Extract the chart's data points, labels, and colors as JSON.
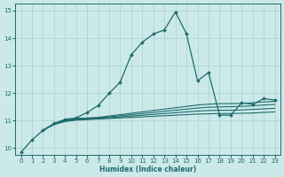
{
  "xlabel": "Humidex (Indice chaleur)",
  "bg_color": "#cce9ea",
  "grid_color": "#aed4d5",
  "line_color": "#1e6b6b",
  "xlim": [
    -0.5,
    23.5
  ],
  "ylim": [
    9.75,
    15.25
  ],
  "yticks": [
    10,
    11,
    12,
    13,
    14,
    15
  ],
  "xticks": [
    0,
    1,
    2,
    3,
    4,
    5,
    6,
    7,
    8,
    9,
    10,
    11,
    12,
    13,
    14,
    15,
    16,
    17,
    18,
    19,
    20,
    21,
    22,
    23
  ],
  "lines": [
    {
      "x": [
        0,
        1,
        2,
        3,
        4,
        5,
        6,
        7,
        8,
        9,
        10,
        11,
        12,
        13,
        14,
        15,
        16,
        17,
        18,
        19,
        20,
        21,
        22,
        23
      ],
      "y": [
        9.85,
        10.3,
        10.65,
        10.9,
        11.05,
        11.1,
        11.3,
        11.55,
        12.0,
        12.4,
        13.4,
        13.85,
        14.15,
        14.3,
        14.95,
        14.15,
        12.45,
        12.75,
        11.2,
        11.2,
        11.65,
        11.6,
        11.8,
        11.75
      ],
      "marker": "D",
      "markersize": 2.0,
      "linewidth": 0.9
    },
    {
      "x": [
        2,
        3,
        4,
        5,
        6,
        7,
        8,
        9,
        10,
        11,
        12,
        13,
        14,
        15,
        16,
        17,
        18,
        19,
        20,
        21,
        22,
        23
      ],
      "y": [
        10.65,
        10.88,
        11.02,
        11.08,
        11.1,
        11.12,
        11.17,
        11.22,
        11.27,
        11.32,
        11.37,
        11.42,
        11.47,
        11.52,
        11.57,
        11.6,
        11.62,
        11.62,
        11.63,
        11.65,
        11.68,
        11.7
      ],
      "marker": null,
      "markersize": 0,
      "linewidth": 0.8
    },
    {
      "x": [
        2,
        3,
        4,
        5,
        6,
        7,
        8,
        9,
        10,
        11,
        12,
        13,
        14,
        15,
        16,
        17,
        18,
        19,
        20,
        21,
        22,
        23
      ],
      "y": [
        10.65,
        10.88,
        11.0,
        11.06,
        11.08,
        11.1,
        11.14,
        11.18,
        11.22,
        11.26,
        11.3,
        11.34,
        11.38,
        11.42,
        11.46,
        11.49,
        11.5,
        11.51,
        11.52,
        11.54,
        11.57,
        11.59
      ],
      "marker": null,
      "markersize": 0,
      "linewidth": 0.8
    },
    {
      "x": [
        2,
        3,
        4,
        5,
        6,
        7,
        8,
        9,
        10,
        11,
        12,
        13,
        14,
        15,
        16,
        17,
        18,
        19,
        20,
        21,
        22,
        23
      ],
      "y": [
        10.65,
        10.87,
        10.99,
        11.04,
        11.06,
        11.08,
        11.11,
        11.14,
        11.17,
        11.2,
        11.23,
        11.26,
        11.29,
        11.32,
        11.35,
        11.37,
        11.38,
        11.38,
        11.39,
        11.41,
        11.43,
        11.45
      ],
      "marker": null,
      "markersize": 0,
      "linewidth": 0.8
    },
    {
      "x": [
        2,
        3,
        4,
        5,
        6,
        7,
        8,
        9,
        10,
        11,
        12,
        13,
        14,
        15,
        16,
        17,
        18,
        19,
        20,
        21,
        22,
        23
      ],
      "y": [
        10.65,
        10.86,
        10.97,
        11.02,
        11.04,
        11.06,
        11.08,
        11.1,
        11.12,
        11.14,
        11.16,
        11.18,
        11.2,
        11.22,
        11.24,
        11.25,
        11.26,
        11.26,
        11.27,
        11.28,
        11.3,
        11.32
      ],
      "marker": null,
      "markersize": 0,
      "linewidth": 0.8
    }
  ]
}
